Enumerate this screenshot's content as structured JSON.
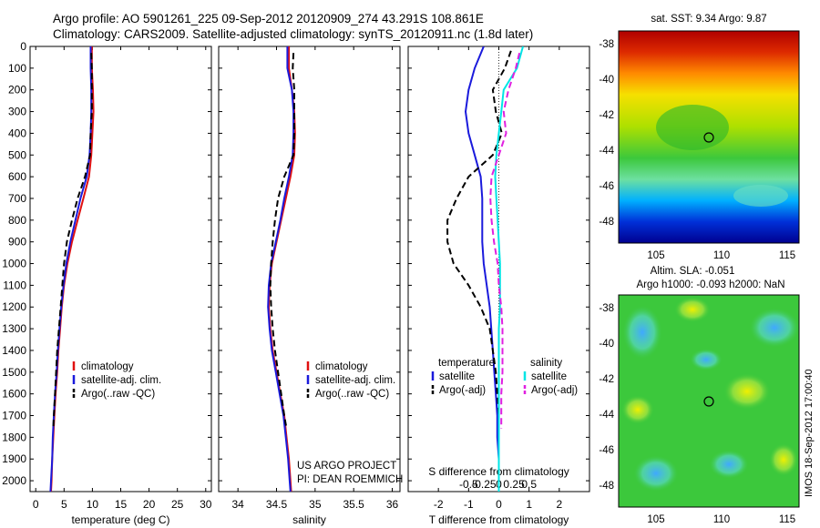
{
  "header": {
    "line1": "Argo profile: AO 5901261_225 09-Sep-2012 20120909_274 43.291S 108.861E",
    "line2": "Climatology: CARS2009. Satellite-adjusted climatology: synTS_20120911.nc (1.8d later)"
  },
  "credits": {
    "project": "US ARGO PROJECT",
    "pi": "PI: DEAN ROEMMICH",
    "side_stamp": "IMOS 18-Sep-2012 17:00:40"
  },
  "legend_profiles": [
    "climatology",
    "satellite-adj. clim.",
    "Argo(..raw -QC)"
  ],
  "legend_diff": {
    "temperature_header": "temperature",
    "salinity_header": "salinity",
    "satellite": "satellite",
    "argo": "Argo(-adj)"
  },
  "colors": {
    "climatology": "#e01010",
    "satellite": "#1a1adc",
    "argo": "#000000",
    "sal_satellite": "#00e5e5",
    "sal_argo": "#e020e0"
  },
  "maps": [
    {
      "title": "sat. SST: 9.34 Argo: 9.87",
      "title2": "",
      "xticks": [
        "105",
        "110",
        "115"
      ],
      "yticks": [
        "-38",
        "-40",
        "-42",
        "-44",
        "-46",
        "-48"
      ],
      "marker_lon": 108.861,
      "marker_lat": -43.291
    },
    {
      "title": "Altim. SLA: -0.051",
      "title2": "Argo h1000: -0.093 h2000: NaN",
      "xticks": [
        "105",
        "110",
        "115"
      ],
      "yticks": [
        "-38",
        "-40",
        "-42",
        "-44",
        "-46",
        "-48"
      ],
      "marker_lon": 108.861,
      "marker_lat": -43.291
    }
  ],
  "chart_data": [
    {
      "type": "line",
      "xlabel": "temperature (deg C)",
      "ylabel": "",
      "xlim": [
        -1,
        31
      ],
      "ylim": [
        2050,
        0
      ],
      "xticks": [
        0,
        5,
        10,
        15,
        20,
        25,
        30
      ],
      "yticks": [
        0,
        100,
        200,
        300,
        400,
        500,
        600,
        700,
        800,
        900,
        1000,
        1100,
        1200,
        1300,
        1400,
        1500,
        1600,
        1700,
        1800,
        1900,
        2000
      ],
      "series": [
        {
          "name": "climatology",
          "style": "solid",
          "color": "#e01010",
          "points": [
            [
              9.9,
              0
            ],
            [
              9.9,
              100
            ],
            [
              10.1,
              200
            ],
            [
              10.2,
              300
            ],
            [
              10.0,
              400
            ],
            [
              9.8,
              500
            ],
            [
              9.4,
              600
            ],
            [
              8.4,
              700
            ],
            [
              7.4,
              800
            ],
            [
              6.4,
              900
            ],
            [
              5.6,
              1000
            ],
            [
              5.0,
              1100
            ],
            [
              4.6,
              1200
            ],
            [
              4.3,
              1300
            ],
            [
              4.0,
              1400
            ],
            [
              3.8,
              1500
            ],
            [
              3.5,
              1600
            ],
            [
              3.3,
              1700
            ],
            [
              3.1,
              1800
            ],
            [
              2.9,
              1900
            ],
            [
              2.8,
              2000
            ],
            [
              2.7,
              2050
            ]
          ]
        },
        {
          "name": "satellite-adj. clim.",
          "style": "solid",
          "color": "#1a1adc",
          "points": [
            [
              9.7,
              0
            ],
            [
              9.7,
              100
            ],
            [
              9.8,
              200
            ],
            [
              9.8,
              300
            ],
            [
              9.7,
              400
            ],
            [
              9.5,
              500
            ],
            [
              9.0,
              600
            ],
            [
              7.9,
              700
            ],
            [
              7.0,
              800
            ],
            [
              6.1,
              900
            ],
            [
              5.4,
              1000
            ],
            [
              4.9,
              1100
            ],
            [
              4.5,
              1200
            ],
            [
              4.2,
              1300
            ],
            [
              3.9,
              1400
            ],
            [
              3.7,
              1500
            ],
            [
              3.4,
              1600
            ],
            [
              3.2,
              1700
            ],
            [
              3.0,
              1800
            ],
            [
              2.9,
              1900
            ],
            [
              2.7,
              2000
            ],
            [
              2.6,
              2050
            ]
          ]
        },
        {
          "name": "Argo(..raw -QC)",
          "style": "dash",
          "color": "#000000",
          "points": [
            [
              9.8,
              30
            ],
            [
              9.9,
              100
            ],
            [
              9.9,
              200
            ],
            [
              9.9,
              300
            ],
            [
              9.7,
              400
            ],
            [
              9.6,
              500
            ],
            [
              8.7,
              600
            ],
            [
              7.4,
              700
            ],
            [
              6.4,
              800
            ],
            [
              5.5,
              900
            ],
            [
              5.0,
              1000
            ],
            [
              4.7,
              1100
            ],
            [
              4.4,
              1200
            ],
            [
              4.1,
              1300
            ],
            [
              3.8,
              1400
            ],
            [
              3.6,
              1500
            ],
            [
              3.4,
              1600
            ],
            [
              3.2,
              1700
            ],
            [
              3.1,
              1760
            ]
          ]
        }
      ]
    },
    {
      "type": "line",
      "xlabel": "salinity",
      "ylabel": "",
      "xlim": [
        33.75,
        36.1
      ],
      "ylim": [
        2050,
        0
      ],
      "xticks": [
        34,
        34.5,
        35,
        35.5,
        36
      ],
      "series": [
        {
          "name": "climatology",
          "style": "solid",
          "color": "#e01010",
          "points": [
            [
              34.66,
              0
            ],
            [
              34.66,
              100
            ],
            [
              34.7,
              200
            ],
            [
              34.73,
              300
            ],
            [
              34.74,
              400
            ],
            [
              34.73,
              500
            ],
            [
              34.68,
              600
            ],
            [
              34.62,
              700
            ],
            [
              34.56,
              800
            ],
            [
              34.5,
              900
            ],
            [
              34.44,
              1000
            ],
            [
              34.41,
              1100
            ],
            [
              34.4,
              1200
            ],
            [
              34.42,
              1300
            ],
            [
              34.45,
              1400
            ],
            [
              34.5,
              1500
            ],
            [
              34.55,
              1600
            ],
            [
              34.6,
              1700
            ],
            [
              34.63,
              1800
            ],
            [
              34.66,
              1900
            ],
            [
              34.68,
              2000
            ],
            [
              34.69,
              2050
            ]
          ]
        },
        {
          "name": "satellite-adj. clim.",
          "style": "solid",
          "color": "#1a1adc",
          "points": [
            [
              34.64,
              0
            ],
            [
              34.64,
              100
            ],
            [
              34.7,
              200
            ],
            [
              34.72,
              300
            ],
            [
              34.72,
              400
            ],
            [
              34.71,
              500
            ],
            [
              34.66,
              600
            ],
            [
              34.6,
              700
            ],
            [
              34.55,
              800
            ],
            [
              34.49,
              900
            ],
            [
              34.43,
              1000
            ],
            [
              34.4,
              1100
            ],
            [
              34.39,
              1200
            ],
            [
              34.41,
              1300
            ],
            [
              34.44,
              1400
            ],
            [
              34.49,
              1500
            ],
            [
              34.54,
              1600
            ],
            [
              34.59,
              1700
            ],
            [
              34.62,
              1800
            ],
            [
              34.65,
              1900
            ],
            [
              34.67,
              2000
            ],
            [
              34.68,
              2050
            ]
          ]
        },
        {
          "name": "Argo(..raw -QC)",
          "style": "dash",
          "color": "#000000",
          "points": [
            [
              34.72,
              30
            ],
            [
              34.71,
              100
            ],
            [
              34.73,
              200
            ],
            [
              34.73,
              300
            ],
            [
              34.73,
              400
            ],
            [
              34.72,
              500
            ],
            [
              34.6,
              600
            ],
            [
              34.52,
              700
            ],
            [
              34.48,
              800
            ],
            [
              34.45,
              900
            ],
            [
              34.43,
              1000
            ],
            [
              34.42,
              1100
            ],
            [
              34.43,
              1200
            ],
            [
              34.45,
              1300
            ],
            [
              34.48,
              1400
            ],
            [
              34.52,
              1500
            ],
            [
              34.56,
              1600
            ],
            [
              34.6,
              1700
            ],
            [
              34.63,
              1760
            ]
          ]
        }
      ]
    },
    {
      "type": "line",
      "xlabel": "T difference from climatology",
      "ylabel": "",
      "xlim": [
        -3.0,
        3.0
      ],
      "ylim": [
        2050,
        0
      ],
      "xticks": [
        -2,
        -1,
        0,
        1,
        2
      ],
      "x2label": "S difference from climatology",
      "x2ticks": [
        "-0.5",
        "-0.25",
        "0",
        "0.25",
        "0.5"
      ],
      "series": [
        {
          "name": "temperature satellite",
          "style": "solid",
          "color": "#1a1adc",
          "points": [
            [
              -0.5,
              0
            ],
            [
              -0.8,
              100
            ],
            [
              -1.0,
              200
            ],
            [
              -1.1,
              300
            ],
            [
              -1.0,
              400
            ],
            [
              -0.8,
              500
            ],
            [
              -0.6,
              600
            ],
            [
              -0.55,
              700
            ],
            [
              -0.55,
              800
            ],
            [
              -0.55,
              900
            ],
            [
              -0.5,
              1000
            ],
            [
              -0.4,
              1100
            ],
            [
              -0.3,
              1200
            ],
            [
              -0.25,
              1300
            ],
            [
              -0.2,
              1400
            ],
            [
              -0.15,
              1500
            ],
            [
              -0.1,
              1600
            ],
            [
              -0.05,
              1700
            ],
            [
              -0.05,
              1800
            ],
            [
              0,
              1900
            ],
            [
              0,
              2050
            ]
          ]
        },
        {
          "name": "temperature Argo(-adj)",
          "style": "dash",
          "color": "#000000",
          "points": [
            [
              0.4,
              20
            ],
            [
              0.2,
              100
            ],
            [
              -0.2,
              200
            ],
            [
              -0.1,
              300
            ],
            [
              0.1,
              400
            ],
            [
              -0.2,
              500
            ],
            [
              -1.0,
              600
            ],
            [
              -1.4,
              700
            ],
            [
              -1.7,
              800
            ],
            [
              -1.7,
              900
            ],
            [
              -1.5,
              1000
            ],
            [
              -1.0,
              1100
            ],
            [
              -0.6,
              1200
            ],
            [
              -0.3,
              1300
            ],
            [
              -0.2,
              1400
            ],
            [
              -0.1,
              1500
            ],
            [
              -0.05,
              1600
            ],
            [
              0,
              1700
            ],
            [
              0,
              1760
            ]
          ]
        },
        {
          "name": "salinity satellite",
          "style": "solid",
          "color": "#00e5e5",
          "points": [
            [
              0.2,
              0
            ],
            [
              0.15,
              100
            ],
            [
              0.04,
              200
            ],
            [
              0.02,
              300
            ],
            [
              0.0,
              400
            ],
            [
              -0.02,
              500
            ],
            [
              -0.03,
              600
            ],
            [
              -0.02,
              700
            ],
            [
              -0.01,
              800
            ],
            [
              0,
              900
            ],
            [
              0.01,
              1000
            ],
            [
              0.01,
              1100
            ],
            [
              0.01,
              1200
            ],
            [
              0.0,
              1300
            ],
            [
              0.0,
              1400
            ],
            [
              0.0,
              1500
            ],
            [
              0.0,
              1600
            ],
            [
              0.0,
              1700
            ],
            [
              0.0,
              1800
            ],
            [
              0.0,
              1900
            ],
            [
              0.0,
              2050
            ]
          ]
        },
        {
          "name": "salinity Argo(-adj)",
          "style": "dash",
          "color": "#e020e0",
          "points": [
            [
              0.17,
              30
            ],
            [
              0.14,
              100
            ],
            [
              0.08,
              200
            ],
            [
              0.04,
              300
            ],
            [
              0.06,
              400
            ],
            [
              0.0,
              500
            ],
            [
              -0.06,
              600
            ],
            [
              -0.07,
              700
            ],
            [
              -0.06,
              800
            ],
            [
              -0.04,
              900
            ],
            [
              -0.01,
              1000
            ],
            [
              0.0,
              1100
            ],
            [
              0.02,
              1200
            ],
            [
              0.03,
              1300
            ],
            [
              0.03,
              1400
            ],
            [
              0.03,
              1500
            ],
            [
              0.02,
              1600
            ],
            [
              0.02,
              1700
            ],
            [
              0.02,
              1760
            ]
          ]
        }
      ]
    }
  ]
}
